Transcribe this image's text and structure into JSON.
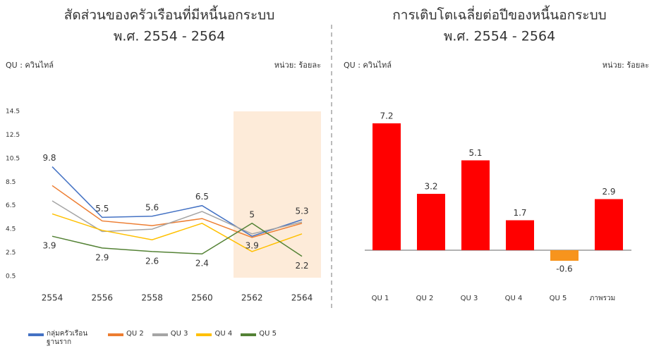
{
  "chart_data": [
    {
      "type": "line",
      "title": "สัดส่วนของครัวเรือนที่มีหนี้นอกระบบ",
      "subtitle": "พ.ศ. 2554 - 2564",
      "note_left": "QU : ควินไทล์",
      "note_right": "หน่วย: ร้อยละ",
      "categories": [
        "2554",
        "2556",
        "2558",
        "2560",
        "2562",
        "2564"
      ],
      "ylim": [
        0.5,
        14.5
      ],
      "yticks": [
        0.5,
        2.5,
        4.5,
        6.5,
        8.5,
        10.5,
        12.5,
        14.5
      ],
      "highlight": {
        "from": "2562",
        "to": "2564",
        "color": "#fdebd9"
      },
      "series": [
        {
          "name": "กลุ่มครัวเรือน ฐานราก",
          "color": "#4472c4",
          "show_labels": true,
          "values": [
            9.8,
            5.5,
            5.6,
            6.5,
            3.9,
            5.3
          ]
        },
        {
          "name": "QU 2",
          "color": "#ed7d31",
          "values": [
            8.2,
            5.2,
            4.8,
            5.4,
            3.8,
            5.0
          ]
        },
        {
          "name": "QU 3",
          "color": "#a5a5a5",
          "values": [
            6.9,
            4.3,
            4.5,
            6.0,
            4.1,
            5.1
          ]
        },
        {
          "name": "QU 4",
          "color": "#ffc000",
          "values": [
            5.8,
            4.4,
            3.6,
            5.0,
            2.6,
            4.1
          ]
        },
        {
          "name": "QU 5",
          "color": "#548235",
          "show_labels": true,
          "values": [
            3.9,
            2.9,
            2.6,
            2.4,
            5.0,
            2.2
          ]
        }
      ]
    },
    {
      "type": "bar",
      "title": "การเติบโตเฉลี่ยต่อปีของหนี้นอกระบบ",
      "subtitle": "พ.ศ. 2554 - 2564",
      "note_left": "QU : ควินไทล์",
      "note_right": "หน่วย: ร้อยละ",
      "categories": [
        "QU 1",
        "QU 2",
        "QU 3",
        "QU 4",
        "QU 5",
        "ภาพรวม"
      ],
      "values": [
        7.2,
        3.2,
        5.1,
        1.7,
        -0.6,
        2.9
      ],
      "colors": [
        "#ff0000",
        "#ff0000",
        "#ff0000",
        "#ff0000",
        "#f7941d",
        "#ff0000"
      ]
    }
  ]
}
